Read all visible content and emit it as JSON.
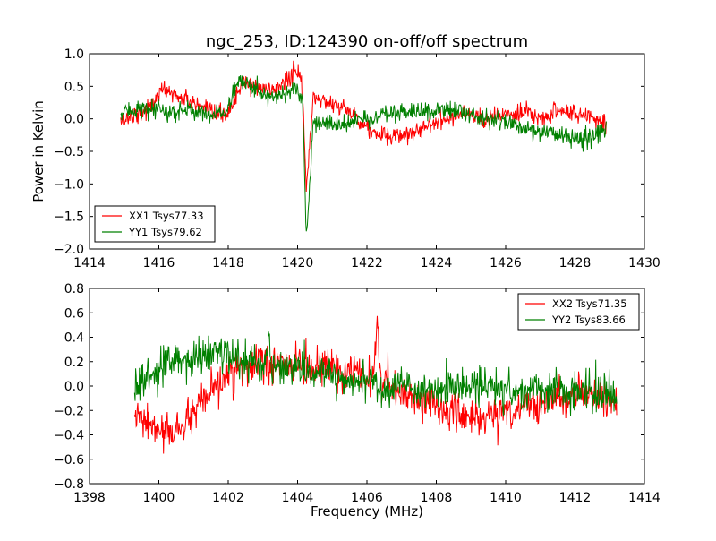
{
  "chart_data": [
    {
      "type": "line",
      "title": "ngc_253, ID:124390 on-off/off spectrum",
      "xlabel": "",
      "ylabel": "Power in Kelvin",
      "xlim": [
        1414,
        1430
      ],
      "ylim": [
        -2.0,
        1.0
      ],
      "xticks": [
        1414,
        1416,
        1418,
        1420,
        1422,
        1424,
        1426,
        1428,
        1430
      ],
      "yticks": [
        -2.0,
        -1.5,
        -1.0,
        -0.5,
        0.0,
        0.5,
        1.0
      ],
      "xtick_labels": [
        "1414",
        "1416",
        "1418",
        "1420",
        "1422",
        "1424",
        "1426",
        "1428",
        "1430"
      ],
      "ytick_labels": [
        "−2.0",
        "−1.5",
        "−1.0",
        "−0.5",
        "0.0",
        "0.5",
        "1.0"
      ],
      "grid": false,
      "legend_position": "lower-left",
      "series": [
        {
          "name": "XX1 Tsys77.33",
          "color": "#ff0000",
          "x": [
            1414.9,
            1415.2,
            1415.5,
            1415.8,
            1416.0,
            1416.2,
            1416.5,
            1416.8,
            1417.1,
            1417.4,
            1417.7,
            1418.0,
            1418.2,
            1418.4,
            1418.7,
            1419.0,
            1419.3,
            1419.6,
            1419.9,
            1420.05,
            1420.15,
            1420.25,
            1420.35,
            1420.45,
            1420.6,
            1420.9,
            1421.2,
            1421.5,
            1421.8,
            1422.1,
            1422.4,
            1422.7,
            1423.0,
            1423.3,
            1423.6,
            1423.9,
            1424.2,
            1424.5,
            1424.8,
            1425.1,
            1425.4,
            1425.7,
            1426.0,
            1426.3,
            1426.6,
            1426.9,
            1427.2,
            1427.5,
            1427.8,
            1428.1,
            1428.4,
            1428.7,
            1428.9
          ],
          "y": [
            -0.05,
            0.05,
            0.1,
            0.2,
            0.4,
            0.45,
            0.35,
            0.3,
            0.2,
            0.1,
            0.05,
            0.1,
            0.3,
            0.55,
            0.5,
            0.45,
            0.45,
            0.55,
            0.7,
            0.75,
            0.3,
            -1.1,
            -0.4,
            0.35,
            0.3,
            0.25,
            0.2,
            0.1,
            0.0,
            -0.2,
            -0.25,
            -0.3,
            -0.25,
            -0.2,
            -0.15,
            -0.05,
            0.0,
            0.05,
            0.1,
            0.05,
            0.0,
            0.05,
            0.05,
            0.05,
            0.1,
            0.0,
            0.05,
            0.15,
            0.1,
            0.05,
            0.05,
            0.0,
            -0.1
          ]
        },
        {
          "name": "YY1 Tsys79.62",
          "color": "#008000",
          "x": [
            1414.9,
            1415.2,
            1415.5,
            1415.8,
            1416.0,
            1416.2,
            1416.5,
            1416.8,
            1417.1,
            1417.4,
            1417.7,
            1418.0,
            1418.2,
            1418.4,
            1418.7,
            1419.0,
            1419.3,
            1419.6,
            1419.9,
            1420.05,
            1420.15,
            1420.25,
            1420.35,
            1420.45,
            1420.6,
            1420.9,
            1421.2,
            1421.5,
            1421.8,
            1422.1,
            1422.4,
            1422.7,
            1423.0,
            1423.3,
            1423.6,
            1423.9,
            1424.2,
            1424.5,
            1424.8,
            1425.1,
            1425.4,
            1425.7,
            1426.0,
            1426.3,
            1426.6,
            1426.9,
            1427.2,
            1427.5,
            1427.8,
            1428.1,
            1428.4,
            1428.7,
            1428.9
          ],
          "y": [
            0.05,
            0.15,
            0.15,
            0.1,
            0.15,
            0.1,
            0.1,
            0.15,
            0.1,
            0.1,
            0.05,
            0.15,
            0.55,
            0.55,
            0.5,
            0.4,
            0.35,
            0.4,
            0.45,
            0.4,
            0.15,
            -1.85,
            -1.1,
            0.0,
            -0.1,
            -0.05,
            -0.1,
            -0.05,
            0.0,
            0.0,
            0.05,
            0.05,
            0.1,
            0.1,
            0.1,
            0.15,
            0.15,
            0.15,
            0.1,
            0.05,
            0.0,
            0.0,
            -0.05,
            -0.1,
            -0.15,
            -0.2,
            -0.2,
            -0.25,
            -0.25,
            -0.3,
            -0.3,
            -0.2,
            -0.15
          ]
        }
      ]
    },
    {
      "type": "line",
      "title": "",
      "xlabel": "Frequency (MHz)",
      "ylabel": "",
      "xlim": [
        1398,
        1414
      ],
      "ylim": [
        -0.8,
        0.8
      ],
      "xticks": [
        1398,
        1400,
        1402,
        1404,
        1406,
        1408,
        1410,
        1412,
        1414
      ],
      "yticks": [
        -0.8,
        -0.6,
        -0.4,
        -0.2,
        0.0,
        0.2,
        0.4,
        0.6,
        0.8
      ],
      "xtick_labels": [
        "1398",
        "1400",
        "1402",
        "1404",
        "1406",
        "1408",
        "1410",
        "1412",
        "1414"
      ],
      "ytick_labels": [
        "−0.8",
        "−0.6",
        "−0.4",
        "−0.2",
        "0.0",
        "0.2",
        "0.4",
        "0.6",
        "0.8"
      ],
      "grid": false,
      "legend_position": "upper-right",
      "series": [
        {
          "name": "XX2 Tsys71.35",
          "color": "#ff0000",
          "x": [
            1399.3,
            1399.6,
            1399.9,
            1400.2,
            1400.5,
            1400.8,
            1401.1,
            1401.4,
            1401.7,
            1402.0,
            1402.3,
            1402.6,
            1402.9,
            1403.2,
            1403.5,
            1403.8,
            1404.1,
            1404.4,
            1404.7,
            1405.0,
            1405.3,
            1405.6,
            1405.9,
            1406.2,
            1406.3,
            1406.4,
            1406.7,
            1407.0,
            1407.3,
            1407.6,
            1407.9,
            1408.2,
            1408.5,
            1408.8,
            1409.1,
            1409.4,
            1409.7,
            1410.0,
            1410.3,
            1410.6,
            1410.9,
            1411.2,
            1411.5,
            1411.8,
            1412.1,
            1412.4,
            1412.7,
            1413.0,
            1413.2
          ],
          "y": [
            -0.25,
            -0.3,
            -0.35,
            -0.4,
            -0.35,
            -0.3,
            -0.2,
            -0.1,
            0.0,
            0.1,
            0.15,
            0.15,
            0.2,
            0.15,
            0.2,
            0.15,
            0.2,
            0.15,
            0.15,
            0.15,
            0.1,
            0.1,
            0.05,
            0.05,
            0.6,
            0.0,
            0.0,
            -0.05,
            -0.1,
            -0.1,
            -0.15,
            -0.2,
            -0.2,
            -0.25,
            -0.25,
            -0.25,
            -0.25,
            -0.2,
            -0.2,
            -0.15,
            -0.15,
            -0.1,
            -0.1,
            -0.1,
            -0.05,
            -0.05,
            -0.1,
            -0.1,
            -0.15
          ]
        },
        {
          "name": "YY2 Tsys83.66",
          "color": "#008000",
          "x": [
            1399.3,
            1399.6,
            1399.9,
            1400.2,
            1400.5,
            1400.8,
            1401.1,
            1401.4,
            1401.7,
            1402.0,
            1402.3,
            1402.6,
            1402.9,
            1403.2,
            1403.5,
            1403.8,
            1404.1,
            1404.4,
            1404.7,
            1405.0,
            1405.3,
            1405.6,
            1405.9,
            1406.2,
            1406.3,
            1406.4,
            1406.7,
            1407.0,
            1407.3,
            1407.6,
            1407.9,
            1408.2,
            1408.5,
            1408.8,
            1409.1,
            1409.4,
            1409.7,
            1410.0,
            1410.3,
            1410.6,
            1410.9,
            1411.2,
            1411.5,
            1411.8,
            1412.1,
            1412.4,
            1412.7,
            1413.0,
            1413.2
          ],
          "y": [
            0.0,
            0.05,
            0.1,
            0.15,
            0.2,
            0.2,
            0.25,
            0.25,
            0.3,
            0.25,
            0.2,
            0.2,
            0.2,
            0.2,
            0.15,
            0.15,
            0.15,
            0.1,
            0.1,
            0.1,
            0.05,
            0.05,
            0.05,
            0.05,
            0.0,
            0.0,
            0.0,
            0.0,
            -0.05,
            -0.05,
            -0.05,
            0.0,
            0.0,
            0.0,
            0.0,
            0.0,
            0.0,
            -0.05,
            -0.05,
            -0.05,
            -0.05,
            -0.05,
            -0.05,
            -0.05,
            -0.05,
            -0.05,
            -0.05,
            -0.05,
            -0.1
          ]
        }
      ]
    }
  ]
}
